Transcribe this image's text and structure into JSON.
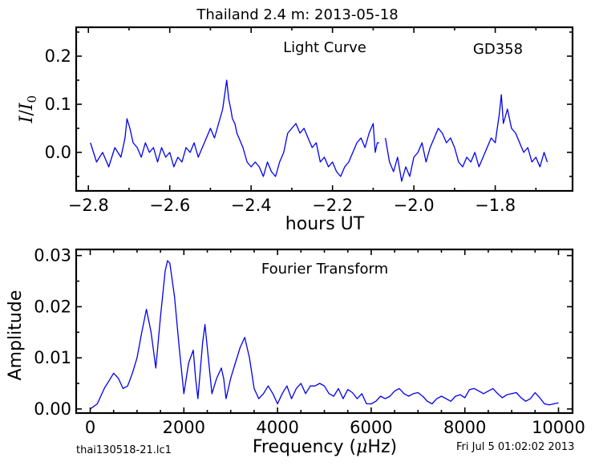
{
  "figure": {
    "title": "Thailand 2.4 m:  2013-05-18",
    "footer_left": "thai130518-21.lc1",
    "footer_right": "Fri Jul  5 01:02:02 2013"
  },
  "colors": {
    "line": "#0000ee",
    "axes": "#000000",
    "background": "#ffffff"
  },
  "chart_data": [
    {
      "type": "line",
      "title": "",
      "annotation_left": "Light Curve",
      "annotation_right": "GD358",
      "xlabel": "hours UT",
      "ylabel_main": "I",
      "ylabel_denom": "I",
      "ylabel_sub": "0",
      "xlim": [
        -2.83,
        -1.61
      ],
      "ylim": [
        -0.08,
        0.26
      ],
      "xticks": [
        -2.8,
        -2.6,
        -2.4,
        -2.2,
        -2.0,
        -1.8
      ],
      "xtick_labels": [
        "−2.8",
        "−2.6",
        "−2.4",
        "−2.2",
        "−2.0",
        "−1.8"
      ],
      "yticks": [
        0.0,
        0.1,
        0.2
      ],
      "ytick_labels": [
        "0.0",
        "0.1",
        "0.2"
      ],
      "series": [
        {
          "x": [
            -2.795,
            -2.78,
            -2.765,
            -2.75,
            -2.735,
            -2.72,
            -2.71,
            -2.705,
            -2.698,
            -2.69,
            -2.68,
            -2.67,
            -2.66,
            -2.65,
            -2.64,
            -2.63,
            -2.62,
            -2.61,
            -2.6,
            -2.59,
            -2.58,
            -2.57,
            -2.56,
            -2.55,
            -2.54,
            -2.53,
            -2.52,
            -2.51,
            -2.5,
            -2.49,
            -2.48,
            -2.47,
            -2.46,
            -2.455,
            -2.45,
            -2.446,
            -2.44,
            -2.435,
            -2.43,
            -2.42,
            -2.41,
            -2.4,
            -2.39,
            -2.38,
            -2.37,
            -2.36,
            -2.35,
            -2.34,
            -2.33,
            -2.32,
            -2.31,
            -2.3,
            -2.29,
            -2.28,
            -2.27,
            -2.26,
            -2.25,
            -2.24,
            -2.23,
            -2.22,
            -2.21,
            -2.2,
            -2.19,
            -2.18,
            -2.17,
            -2.16,
            -2.15,
            -2.14,
            -2.13,
            -2.12,
            -2.11,
            -2.1,
            -2.095,
            -2.09,
            -2.085
          ],
          "y": [
            0.02,
            -0.02,
            0.0,
            -0.03,
            0.01,
            -0.01,
            0.03,
            0.07,
            0.05,
            0.02,
            0.01,
            -0.01,
            0.02,
            0.0,
            0.01,
            -0.02,
            0.01,
            -0.01,
            0.0,
            -0.03,
            -0.01,
            -0.02,
            0.01,
            0.0,
            0.02,
            -0.01,
            0.01,
            0.03,
            0.05,
            0.03,
            0.06,
            0.09,
            0.15,
            0.11,
            0.09,
            0.07,
            0.06,
            0.04,
            0.03,
            0.01,
            -0.02,
            -0.03,
            -0.02,
            -0.03,
            -0.05,
            -0.02,
            -0.04,
            -0.05,
            -0.02,
            0.0,
            0.04,
            0.05,
            0.06,
            0.04,
            0.05,
            0.03,
            0.01,
            0.02,
            -0.02,
            -0.01,
            -0.03,
            -0.02,
            -0.04,
            -0.05,
            -0.03,
            -0.02,
            0.0,
            0.02,
            0.03,
            0.01,
            0.04,
            0.06,
            0.0,
            0.02,
            0.02
          ]
        },
        {
          "x": [
            -2.07,
            -2.06,
            -2.05,
            -2.04,
            -2.03,
            -2.02,
            -2.01,
            -2.0,
            -1.99,
            -1.98,
            -1.97,
            -1.96,
            -1.95,
            -1.94,
            -1.93,
            -1.92,
            -1.91,
            -1.9,
            -1.89,
            -1.88,
            -1.87,
            -1.86,
            -1.85,
            -1.84,
            -1.83,
            -1.82,
            -1.81,
            -1.8,
            -1.795,
            -1.79,
            -1.785,
            -1.78,
            -1.77,
            -1.76,
            -1.75,
            -1.74,
            -1.73,
            -1.72,
            -1.71,
            -1.7,
            -1.69,
            -1.68,
            -1.672
          ],
          "y": [
            0.03,
            -0.02,
            -0.04,
            -0.01,
            -0.06,
            -0.03,
            -0.05,
            -0.01,
            0.0,
            0.02,
            -0.02,
            0.01,
            0.03,
            0.05,
            0.04,
            0.02,
            0.03,
            0.01,
            -0.02,
            -0.03,
            -0.01,
            -0.02,
            0.0,
            -0.03,
            -0.01,
            0.01,
            0.03,
            0.02,
            0.05,
            0.08,
            0.12,
            0.06,
            0.09,
            0.05,
            0.04,
            0.02,
            0.0,
            0.01,
            -0.02,
            -0.01,
            -0.03,
            0.0,
            -0.02
          ]
        }
      ]
    },
    {
      "type": "line",
      "title": "",
      "annotation": "Fourier Transform",
      "xlabel_main": "Frequency (",
      "xlabel_mu": "μ",
      "xlabel_tail": "Hz)",
      "ylabel": "Amplitude",
      "xlim": [
        -300,
        10300
      ],
      "ylim": [
        -0.0008,
        0.0312
      ],
      "xticks": [
        0,
        2000,
        4000,
        6000,
        8000,
        10000
      ],
      "xtick_labels": [
        "0",
        "2000",
        "4000",
        "6000",
        "8000",
        "10000"
      ],
      "yticks": [
        0.0,
        0.01,
        0.02,
        0.03
      ],
      "ytick_labels": [
        "0.00",
        "0.01",
        "0.02",
        "0.03"
      ],
      "x": [
        0,
        150,
        300,
        400,
        500,
        600,
        700,
        800,
        900,
        1000,
        1100,
        1200,
        1300,
        1400,
        1500,
        1600,
        1650,
        1700,
        1800,
        1900,
        2000,
        2100,
        2200,
        2250,
        2300,
        2400,
        2450,
        2500,
        2600,
        2700,
        2800,
        2850,
        2900,
        3000,
        3100,
        3200,
        3300,
        3400,
        3500,
        3600,
        3700,
        3800,
        3900,
        4000,
        4100,
        4200,
        4300,
        4400,
        4500,
        4600,
        4700,
        4800,
        4900,
        5000,
        5100,
        5200,
        5300,
        5400,
        5500,
        5600,
        5700,
        5800,
        5900,
        6000,
        6100,
        6200,
        6300,
        6400,
        6500,
        6600,
        6700,
        6800,
        6900,
        7000,
        7100,
        7200,
        7300,
        7400,
        7500,
        7600,
        7700,
        7800,
        7900,
        8000,
        8100,
        8200,
        8300,
        8400,
        8500,
        8600,
        8700,
        8800,
        8900,
        9000,
        9100,
        9200,
        9300,
        9400,
        9500,
        9600,
        9700,
        9800,
        9900,
        10000
      ],
      "y": [
        0.0,
        0.001,
        0.004,
        0.0055,
        0.007,
        0.006,
        0.004,
        0.0045,
        0.007,
        0.01,
        0.015,
        0.0195,
        0.015,
        0.008,
        0.018,
        0.027,
        0.029,
        0.0285,
        0.022,
        0.012,
        0.003,
        0.009,
        0.0115,
        0.006,
        0.002,
        0.013,
        0.0165,
        0.012,
        0.003,
        0.006,
        0.008,
        0.006,
        0.002,
        0.006,
        0.009,
        0.012,
        0.014,
        0.01,
        0.004,
        0.002,
        0.003,
        0.0045,
        0.003,
        0.001,
        0.003,
        0.0045,
        0.002,
        0.004,
        0.005,
        0.003,
        0.0045,
        0.0045,
        0.005,
        0.0045,
        0.003,
        0.0025,
        0.004,
        0.002,
        0.0038,
        0.0032,
        0.002,
        0.003,
        0.001,
        0.001,
        0.0015,
        0.0025,
        0.002,
        0.0025,
        0.0035,
        0.004,
        0.003,
        0.0025,
        0.003,
        0.0032,
        0.0025,
        0.0015,
        0.001,
        0.002,
        0.0025,
        0.002,
        0.0015,
        0.0025,
        0.0028,
        0.0022,
        0.0038,
        0.004,
        0.0035,
        0.003,
        0.0035,
        0.004,
        0.003,
        0.0022,
        0.0028,
        0.003,
        0.0032,
        0.0022,
        0.0015,
        0.002,
        0.0032,
        0.0022,
        0.001,
        0.0008,
        0.001,
        0.0012
      ]
    }
  ]
}
